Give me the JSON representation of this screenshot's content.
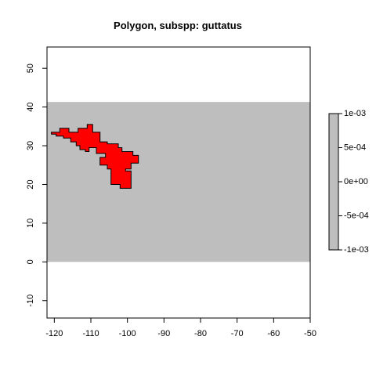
{
  "chart_data": {
    "type": "map",
    "title": "Polygon, subspp: guttatus",
    "xlabel": "",
    "ylabel": "",
    "xlim": [
      -122,
      -50
    ],
    "ylim": [
      -14.5,
      55.5
    ],
    "x_ticks": [
      -120,
      -110,
      -100,
      -90,
      -80,
      -70,
      -60,
      -50
    ],
    "y_ticks": [
      -10,
      0,
      10,
      20,
      30,
      40,
      50
    ],
    "raster_extent": {
      "x": [
        -122,
        -50
      ],
      "y": [
        0,
        41.3
      ]
    },
    "raster_color": "#bebebe",
    "polygon": {
      "fill": "#ff0000",
      "stroke": "#000000",
      "vertices": [
        [
          -120.8,
          33.5
        ],
        [
          -118.5,
          33.5
        ],
        [
          -118.5,
          34.5
        ],
        [
          -116.0,
          34.5
        ],
        [
          -116.0,
          33.5
        ],
        [
          -113.5,
          33.5
        ],
        [
          -113.5,
          34.5
        ],
        [
          -111.0,
          34.5
        ],
        [
          -111.0,
          35.5
        ],
        [
          -109.5,
          35.5
        ],
        [
          -109.5,
          33.5
        ],
        [
          -107.5,
          33.5
        ],
        [
          -107.5,
          31.0
        ],
        [
          -105.5,
          31.0
        ],
        [
          -105.5,
          30.5
        ],
        [
          -102.5,
          30.5
        ],
        [
          -102.5,
          29.5
        ],
        [
          -101.5,
          29.5
        ],
        [
          -101.5,
          28.5
        ],
        [
          -98.5,
          28.5
        ],
        [
          -98.5,
          27.5
        ],
        [
          -97.0,
          27.5
        ],
        [
          -97.0,
          25.5
        ],
        [
          -99.0,
          25.5
        ],
        [
          -99.0,
          24.0
        ],
        [
          -100.5,
          24.0
        ],
        [
          -100.5,
          23.5
        ],
        [
          -99.0,
          23.5
        ],
        [
          -99.0,
          19.0
        ],
        [
          -102.0,
          19.0
        ],
        [
          -102.0,
          20.0
        ],
        [
          -104.5,
          20.0
        ],
        [
          -104.5,
          24.0
        ],
        [
          -105.5,
          24.0
        ],
        [
          -105.5,
          25.0
        ],
        [
          -107.5,
          25.0
        ],
        [
          -107.5,
          27.0
        ],
        [
          -106.0,
          27.0
        ],
        [
          -106.0,
          28.0
        ],
        [
          -108.5,
          28.0
        ],
        [
          -108.5,
          29.5
        ],
        [
          -110.5,
          29.5
        ],
        [
          -110.5,
          28.5
        ],
        [
          -111.5,
          28.5
        ],
        [
          -111.5,
          29.0
        ],
        [
          -113.0,
          29.0
        ],
        [
          -113.0,
          30.0
        ],
        [
          -114.0,
          30.0
        ],
        [
          -114.0,
          31.0
        ],
        [
          -115.5,
          31.0
        ],
        [
          -115.5,
          32.0
        ],
        [
          -117.5,
          32.0
        ],
        [
          -117.5,
          32.5
        ],
        [
          -119.5,
          32.5
        ],
        [
          -119.5,
          33.0
        ],
        [
          -120.8,
          33.0
        ]
      ]
    },
    "legend": {
      "position": "right",
      "ticks": [
        0.001,
        0.0005,
        0,
        -0.0005,
        -0.001
      ],
      "tick_labels": [
        "1e-03",
        "5e-04",
        "0e+00",
        "-5e-04",
        "-1e-03"
      ],
      "range": [
        -0.001,
        0.001
      ],
      "color": "#bebebe"
    }
  }
}
